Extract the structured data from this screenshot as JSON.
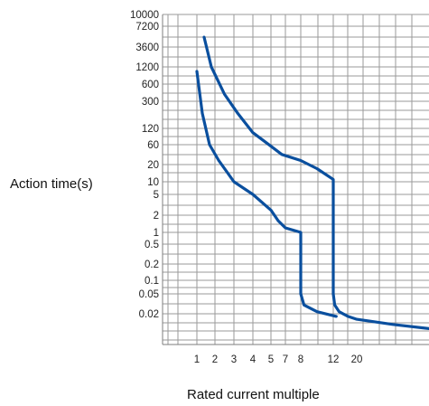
{
  "chart_data": {
    "type": "line",
    "title": "",
    "xlabel": "Rated current multiple",
    "ylabel": "Action time(s)",
    "x_ticks": [
      "1",
      "2",
      "3",
      "4",
      "5",
      "7",
      "8",
      "12",
      "20"
    ],
    "y_ticks": [
      "10000",
      "7200",
      "3600",
      "1200",
      "600",
      "300",
      "120",
      "60",
      "20",
      "10",
      "5",
      "2",
      "1",
      "0.5",
      "0.2",
      "0.1",
      "0.05",
      "0.02"
    ],
    "grid": true,
    "legend": "none",
    "series_color": "#0a4f9e",
    "series": [
      {
        "points": [
          {
            "x": 1,
            "y": 1000
          },
          {
            "x": 1.3,
            "y": 200
          },
          {
            "x": 1.7,
            "y": 60
          },
          {
            "x": 2.2,
            "y": 25
          },
          {
            "x": 3,
            "y": 10
          },
          {
            "x": 4,
            "y": 5
          },
          {
            "x": 5,
            "y": 2.5
          },
          {
            "x": 6,
            "y": 1.6
          },
          {
            "x": 7,
            "y": 1.2
          },
          {
            "x": 8,
            "y": 1
          },
          {
            "x": 8,
            "y": 0.05
          },
          {
            "x": 8.4,
            "y": 0.03
          },
          {
            "x": 10,
            "y": 0.022
          },
          {
            "x": 13,
            "y": 0.018
          }
        ]
      },
      {
        "points": [
          {
            "x": 1.4,
            "y": 5000
          },
          {
            "x": 1.8,
            "y": 1200
          },
          {
            "x": 2.5,
            "y": 400
          },
          {
            "x": 3.2,
            "y": 200
          },
          {
            "x": 4,
            "y": 100
          },
          {
            "x": 5,
            "y": 55
          },
          {
            "x": 6.5,
            "y": 35
          },
          {
            "x": 8,
            "y": 25
          },
          {
            "x": 10,
            "y": 17
          },
          {
            "x": 12,
            "y": 11
          },
          {
            "x": 12,
            "y": 0.05
          },
          {
            "x": 12.5,
            "y": 0.03
          },
          {
            "x": 14,
            "y": 0.022
          },
          {
            "x": 17,
            "y": 0.018
          },
          {
            "x": 20,
            "y": 0.016
          },
          {
            "x": 25,
            "y": 0.013
          },
          {
            "x": 30,
            "y": 0.011
          }
        ]
      }
    ]
  }
}
